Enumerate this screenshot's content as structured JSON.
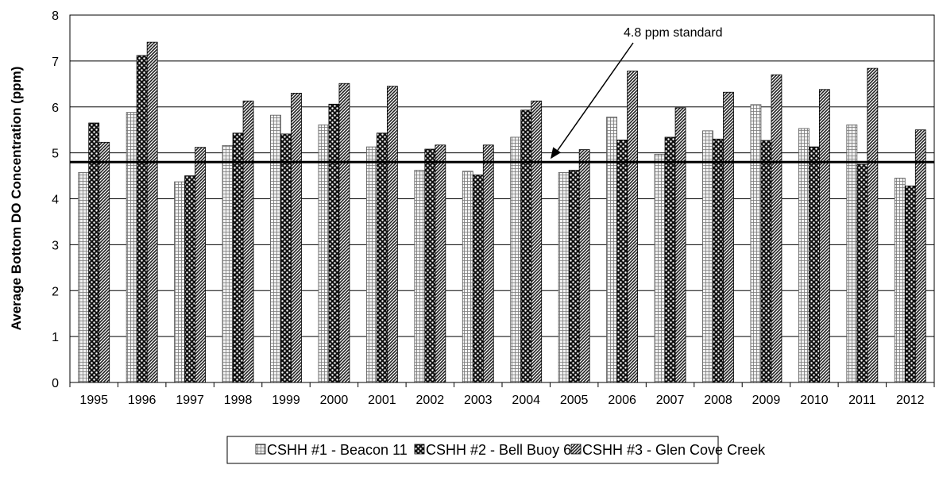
{
  "chart_data": {
    "type": "bar",
    "title": "",
    "xlabel": "",
    "ylabel": "Average Bottom DO Concentration (ppm)",
    "ylim": [
      0,
      8
    ],
    "yticks": [
      0,
      1,
      2,
      3,
      4,
      5,
      6,
      7,
      8
    ],
    "grid": true,
    "legend_position": "bottom",
    "categories": [
      "1995",
      "1996",
      "1997",
      "1998",
      "1999",
      "2000",
      "2001",
      "2002",
      "2003",
      "2004",
      "2005",
      "2006",
      "2007",
      "2008",
      "2009",
      "2010",
      "2011",
      "2012"
    ],
    "series": [
      {
        "name": "CSHH #1 - Beacon 11",
        "values": [
          4.57,
          5.88,
          4.37,
          5.16,
          5.82,
          5.61,
          5.13,
          4.62,
          4.6,
          5.34,
          4.57,
          5.78,
          4.97,
          5.48,
          6.05,
          5.53,
          5.61,
          4.45
        ]
      },
      {
        "name": "CSHH #2 - Bell Buoy 6",
        "values": [
          5.65,
          7.12,
          4.5,
          5.43,
          5.41,
          6.06,
          5.43,
          5.08,
          4.52,
          5.93,
          4.62,
          5.28,
          5.34,
          5.3,
          5.27,
          5.13,
          4.75,
          4.28
        ]
      },
      {
        "name": "CSHH #3 - Glen Cove Creek",
        "values": [
          5.23,
          7.41,
          5.12,
          6.13,
          6.3,
          6.51,
          6.45,
          5.17,
          5.17,
          6.13,
          5.07,
          6.78,
          5.98,
          6.32,
          6.7,
          6.38,
          6.84,
          5.5
        ]
      }
    ],
    "reference_line": {
      "value": 4.8,
      "label": "4.8 ppm standard"
    }
  },
  "colors": {
    "series1_fill": "#eaeaea",
    "series2_fill": "#1a1a1a",
    "series3_fill": "#5a5a5a",
    "grid": "#000000",
    "reference_line": "#000000"
  }
}
